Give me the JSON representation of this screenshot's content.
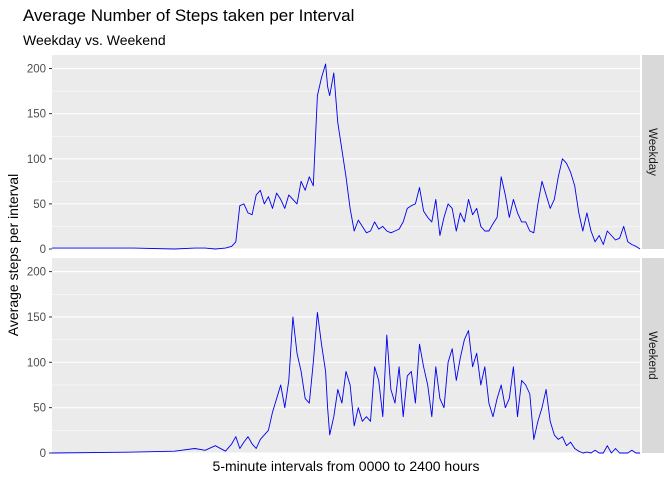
{
  "chart_data": {
    "type": "line",
    "title": "Average Number of Steps taken per Interval",
    "subtitle": "Weekday vs. Weekend",
    "xlabel": "5-minute intervals from 0000 to 2400 hours",
    "ylabel": "Average steps per interval",
    "ylim": [
      0,
      215
    ],
    "yticks": [
      "0",
      "50",
      "100",
      "150",
      "200"
    ],
    "xlim": [
      0,
      288
    ],
    "grid": true,
    "line_color": "#0000ee",
    "facets": [
      {
        "label": "Weekday",
        "x": [
          0,
          40,
          60,
          70,
          75,
          80,
          85,
          88,
          90,
          92,
          94,
          96,
          98,
          100,
          102,
          104,
          106,
          108,
          110,
          112,
          114,
          116,
          118,
          120,
          122,
          124,
          126,
          128,
          130,
          132,
          134,
          135,
          136,
          138,
          140,
          142,
          144,
          146,
          148,
          150,
          152,
          154,
          156,
          158,
          160,
          162,
          164,
          166,
          168,
          170,
          172,
          174,
          176,
          178,
          180,
          182,
          184,
          186,
          188,
          190,
          192,
          194,
          196,
          198,
          200,
          202,
          204,
          206,
          208,
          210,
          212,
          214,
          216,
          218,
          220,
          222,
          224,
          226,
          228,
          230,
          232,
          234,
          236,
          238,
          240,
          242,
          244,
          246,
          248,
          250,
          252,
          254,
          256,
          258,
          260,
          262,
          264,
          266,
          268,
          270,
          272,
          274,
          276,
          278,
          280,
          282,
          284,
          286,
          288
        ],
        "y": [
          1,
          1,
          0,
          1,
          1,
          0,
          1,
          3,
          8,
          48,
          50,
          40,
          38,
          60,
          65,
          50,
          58,
          45,
          62,
          55,
          45,
          60,
          55,
          50,
          75,
          65,
          80,
          70,
          170,
          190,
          205,
          180,
          170,
          195,
          140,
          110,
          80,
          45,
          20,
          32,
          25,
          18,
          20,
          30,
          22,
          25,
          20,
          18,
          20,
          22,
          30,
          45,
          48,
          50,
          68,
          42,
          35,
          30,
          55,
          15,
          35,
          50,
          45,
          20,
          40,
          30,
          55,
          38,
          45,
          25,
          20,
          20,
          28,
          35,
          80,
          60,
          35,
          55,
          40,
          30,
          30,
          20,
          18,
          50,
          75,
          60,
          45,
          55,
          80,
          100,
          95,
          85,
          70,
          40,
          20,
          40,
          20,
          8,
          15,
          5,
          20,
          15,
          10,
          12,
          25,
          8,
          5,
          3,
          0
        ]
      },
      {
        "label": "Weekend",
        "x": [
          0,
          40,
          60,
          70,
          75,
          80,
          85,
          88,
          90,
          92,
          94,
          96,
          98,
          100,
          102,
          104,
          106,
          108,
          110,
          112,
          114,
          116,
          118,
          120,
          122,
          124,
          126,
          128,
          130,
          132,
          134,
          135,
          136,
          138,
          140,
          142,
          144,
          146,
          148,
          150,
          152,
          154,
          156,
          158,
          160,
          162,
          164,
          166,
          168,
          170,
          172,
          174,
          176,
          178,
          180,
          182,
          184,
          186,
          188,
          190,
          192,
          194,
          196,
          198,
          200,
          202,
          204,
          206,
          208,
          210,
          212,
          214,
          216,
          218,
          220,
          222,
          224,
          226,
          228,
          230,
          232,
          234,
          236,
          238,
          240,
          242,
          244,
          246,
          248,
          250,
          252,
          254,
          256,
          258,
          260,
          262,
          264,
          266,
          268,
          270,
          272,
          274,
          276,
          278,
          280,
          282,
          284,
          286,
          288
        ],
        "y": [
          0,
          1,
          2,
          5,
          3,
          8,
          2,
          10,
          18,
          5,
          12,
          18,
          10,
          5,
          15,
          20,
          25,
          45,
          60,
          75,
          50,
          80,
          150,
          110,
          90,
          60,
          55,
          100,
          155,
          120,
          90,
          50,
          20,
          40,
          70,
          55,
          90,
          75,
          30,
          50,
          35,
          40,
          35,
          95,
          80,
          40,
          130,
          70,
          55,
          95,
          40,
          85,
          90,
          55,
          120,
          95,
          75,
          40,
          95,
          60,
          50,
          100,
          115,
          80,
          105,
          125,
          135,
          95,
          110,
          75,
          95,
          55,
          40,
          60,
          75,
          50,
          60,
          95,
          40,
          80,
          75,
          65,
          15,
          35,
          50,
          70,
          35,
          20,
          15,
          18,
          8,
          12,
          5,
          2,
          0,
          1,
          0,
          3,
          0,
          0,
          8,
          0,
          5,
          0,
          0,
          0,
          3,
          0,
          0
        ]
      }
    ]
  }
}
